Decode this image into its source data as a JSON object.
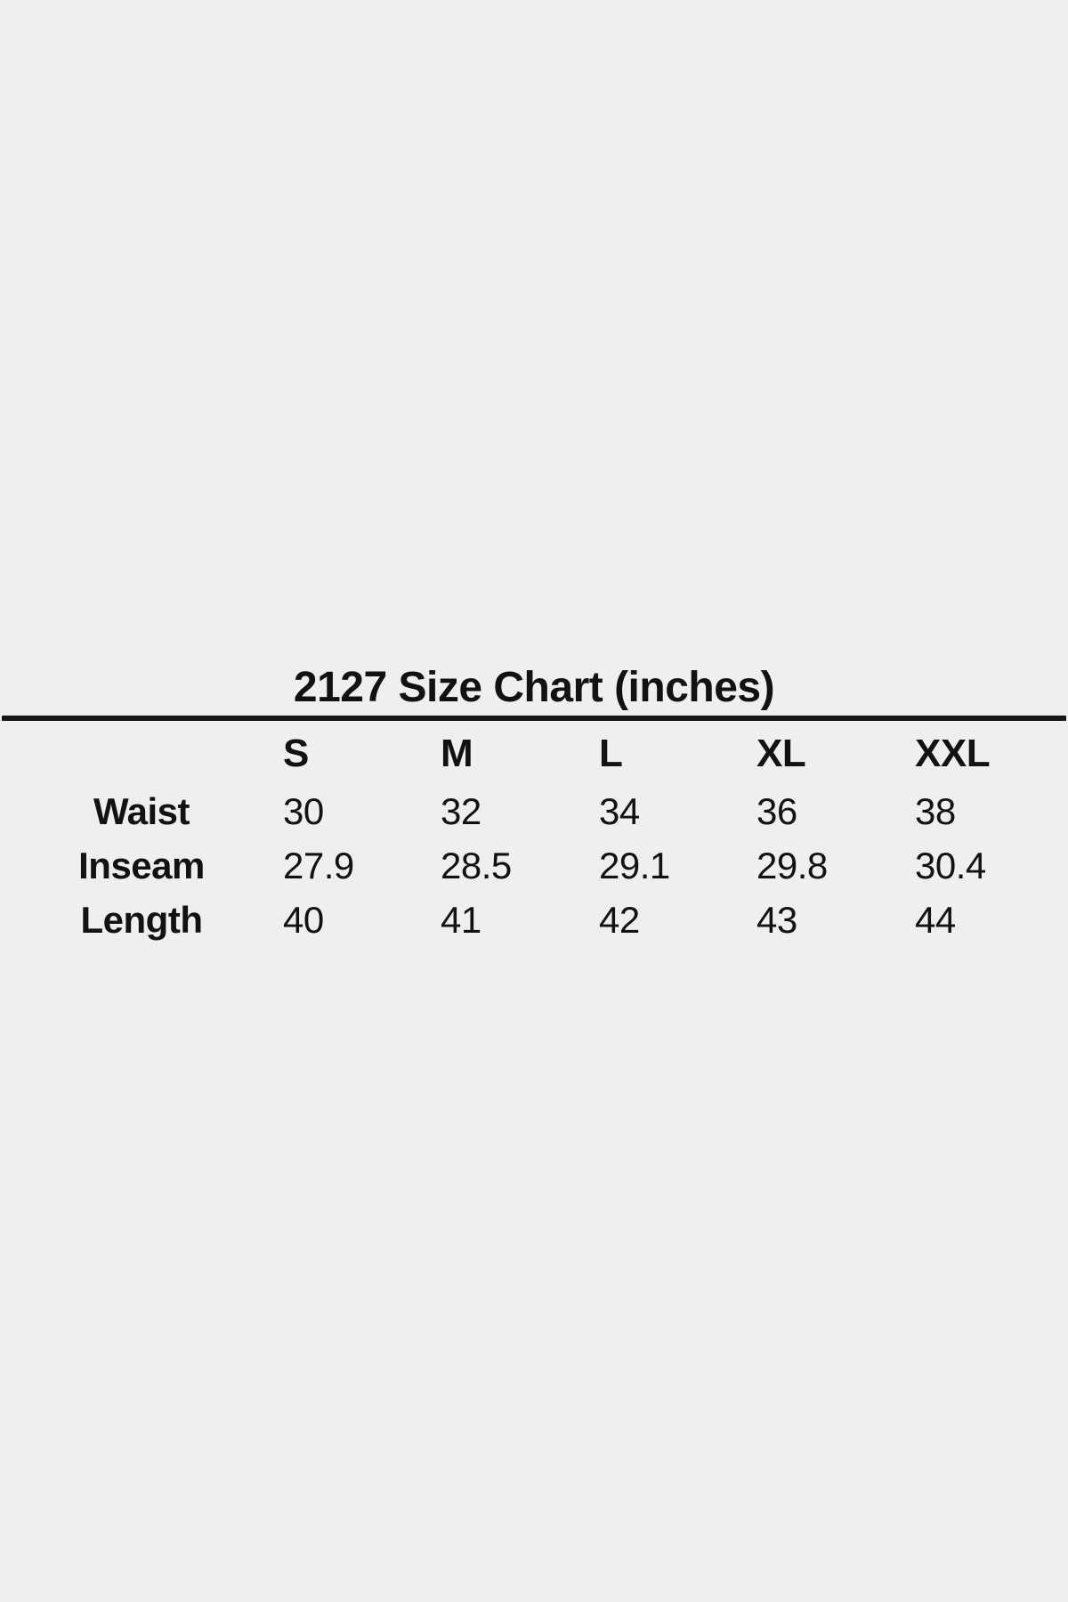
{
  "colors": {
    "background": "#efefef",
    "text": "#121212",
    "divider": "#161616"
  },
  "chart_data": {
    "type": "table",
    "title": "2127 Size Chart (inches)",
    "units": "inches",
    "columns": [
      "S",
      "M",
      "L",
      "XL",
      "XXL"
    ],
    "rows": [
      {
        "label": "Waist",
        "values": [
          30,
          32,
          34,
          36,
          38
        ]
      },
      {
        "label": "Inseam",
        "values": [
          27.9,
          28.5,
          29.1,
          29.8,
          30.4
        ]
      },
      {
        "label": "Length",
        "values": [
          40,
          41,
          42,
          43,
          44
        ]
      }
    ]
  }
}
